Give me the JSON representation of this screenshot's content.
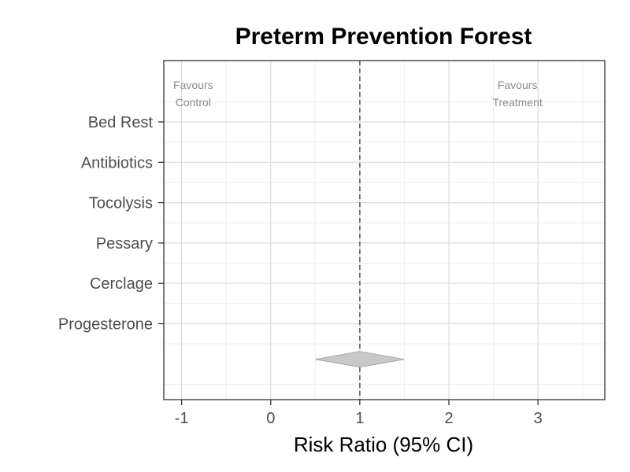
{
  "chart_data": {
    "type": "forest",
    "title": "Preterm Prevention Forest",
    "xlabel": "Risk Ratio (95% CI)",
    "ylabel": "",
    "xlim": [
      -1.2,
      3.75
    ],
    "x_ticks": [
      -1,
      0,
      1,
      2,
      3
    ],
    "reference_line": 1,
    "categories": [
      "Bed Rest",
      "Antibiotics",
      "Tocolysis",
      "Pessary",
      "Cerclage",
      "Progesterone"
    ],
    "studies": [],
    "summary": {
      "estimate": 1,
      "lower": 0.5,
      "upper": 1.5
    },
    "annotations": {
      "left": [
        "Favours",
        "Control"
      ],
      "right": [
        "Favours",
        "Treatment"
      ]
    },
    "grid": true,
    "colors": {
      "summary_fill": "#c8c8c8",
      "summary_stroke": "#a8a8a8",
      "reference_line": "#6e6e6e",
      "grid": "#dcdcdc",
      "panel_border": "#333333"
    }
  }
}
